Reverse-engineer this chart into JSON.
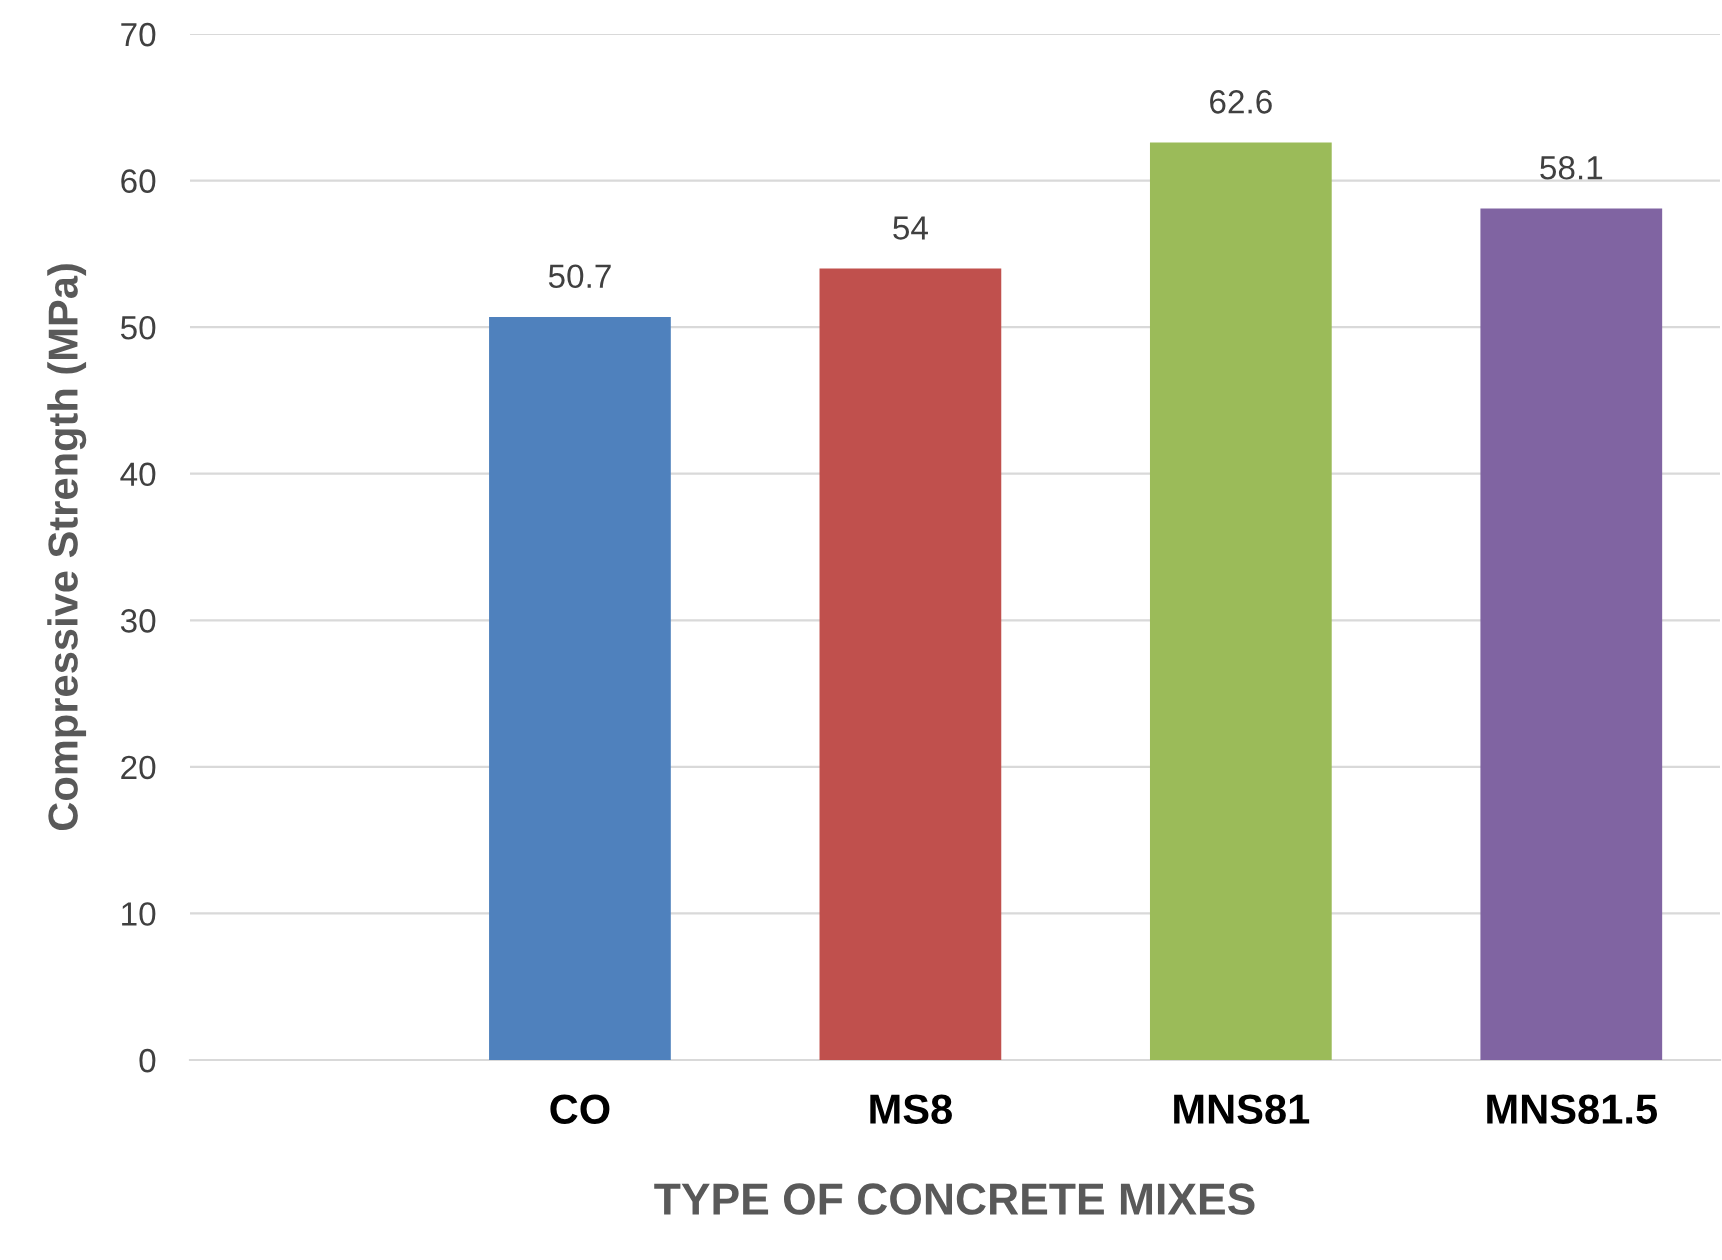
{
  "chart_data": {
    "type": "bar",
    "categories": [
      null,
      "CO",
      "MS8",
      "MNS81",
      "MNS81.5"
    ],
    "values": [
      null,
      50.7,
      54,
      62.6,
      58.1
    ],
    "colors": [
      "#4f81bd",
      "#4f81bd",
      "#c0504d",
      "#9bbb59",
      "#8064a2"
    ],
    "xlabel": "TYPE OF CONCRETE MIXES",
    "ylabel": "Compressive Strength (MPa)",
    "ylim": [
      0,
      70
    ],
    "yticks": [
      0,
      10,
      20,
      30,
      40,
      50,
      60,
      70
    ],
    "grid": "y",
    "data_labels": true
  }
}
